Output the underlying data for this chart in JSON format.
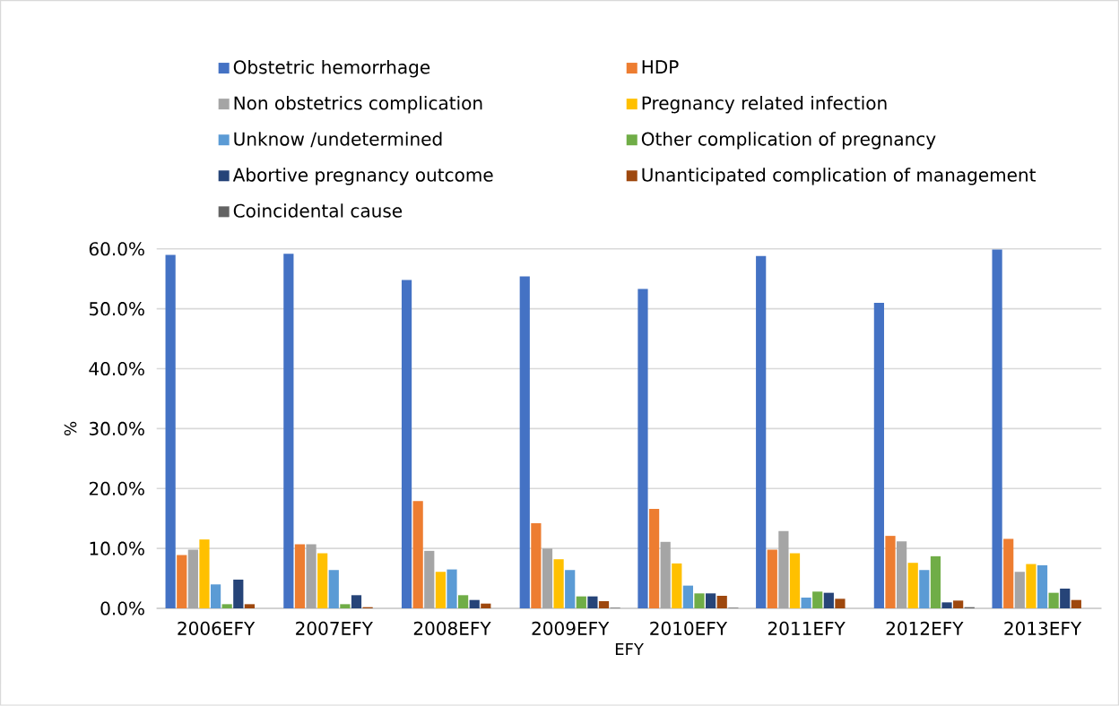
{
  "chart_data": {
    "type": "bar",
    "xlabel": "EFY",
    "ylabel": "%",
    "categories": [
      "2006EFY",
      "2007EFY",
      "2008EFY",
      "2009EFY",
      "2010EFY",
      "2011EFY",
      "2012EFY",
      "2013EFY"
    ],
    "series": [
      {
        "name": "Obstetric hemorrhage",
        "color": "#4472c4",
        "values": [
          59.0,
          59.2,
          54.8,
          55.4,
          53.3,
          58.8,
          51.0,
          59.9
        ]
      },
      {
        "name": "HDP",
        "color": "#ed7d31",
        "values": [
          8.9,
          10.7,
          17.9,
          14.2,
          16.6,
          9.8,
          12.1,
          11.6
        ]
      },
      {
        "name": "Non obstetrics complication",
        "color": "#a5a5a5",
        "values": [
          9.8,
          10.7,
          9.6,
          10.0,
          11.1,
          12.9,
          11.2,
          6.1
        ]
      },
      {
        "name": "Pregnancy related infection",
        "color": "#ffc000",
        "values": [
          11.5,
          9.2,
          6.1,
          8.2,
          7.5,
          9.2,
          7.6,
          7.4
        ]
      },
      {
        "name": "Unknow /undetermined",
        "color": "#5b9bd5",
        "values": [
          4.0,
          6.4,
          6.5,
          6.4,
          3.8,
          1.8,
          6.4,
          7.2
        ]
      },
      {
        "name": "Other complication of pregnancy",
        "color": "#70ad47",
        "values": [
          0.7,
          0.7,
          2.2,
          2.0,
          2.5,
          2.8,
          8.7,
          2.6
        ]
      },
      {
        "name": "Abortive pregnancy outcome",
        "color": "#264478",
        "values": [
          4.8,
          2.2,
          1.4,
          2.0,
          2.5,
          2.6,
          1.0,
          3.3
        ]
      },
      {
        "name": "Unanticipated complication of management",
        "color": "#9e480e",
        "values": [
          0.7,
          0.2,
          0.8,
          1.2,
          2.1,
          1.6,
          1.3,
          1.4
        ]
      },
      {
        "name": "Coincidental cause",
        "color": "#636363",
        "values": [
          0,
          0,
          0,
          0.1,
          0.1,
          0,
          0.2,
          0
        ]
      }
    ],
    "ylim": [
      0,
      60
    ],
    "yticks": [
      {
        "value": 0,
        "label": "0.0%"
      },
      {
        "value": 10,
        "label": "10.0%"
      },
      {
        "value": 20,
        "label": "20.0%"
      },
      {
        "value": 30,
        "label": "30.0%"
      },
      {
        "value": 40,
        "label": "40.0%"
      },
      {
        "value": 50,
        "label": "50.0%"
      },
      {
        "value": 60,
        "label": "60.0%"
      }
    ],
    "grid": "y",
    "legend": "top"
  }
}
